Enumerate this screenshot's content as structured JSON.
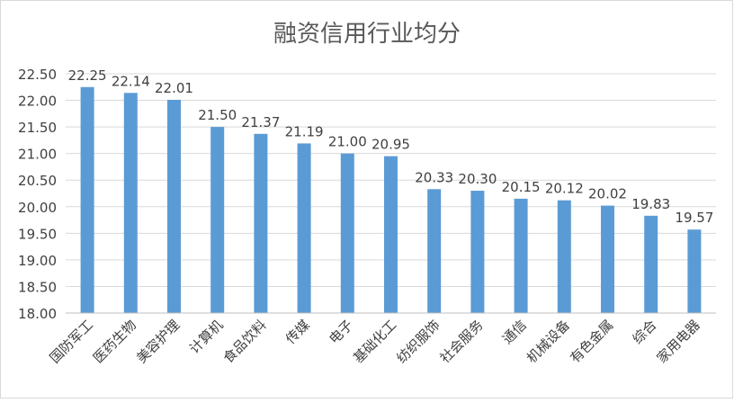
{
  "chart_data": {
    "type": "bar",
    "title": "融资信用行业均分",
    "categories": [
      "国防军工",
      "医药生物",
      "美容护理",
      "计算机",
      "食品饮料",
      "传媒",
      "电子",
      "基础化工",
      "纺织服饰",
      "社会服务",
      "通信",
      "机械设备",
      "有色金属",
      "综合",
      "家用电器"
    ],
    "values": [
      22.25,
      22.14,
      22.01,
      21.5,
      21.37,
      21.19,
      21.0,
      20.95,
      20.33,
      20.3,
      20.15,
      20.12,
      20.02,
      19.83,
      19.57
    ],
    "value_labels": [
      "22.25",
      "22.14",
      "22.01",
      "21.50",
      "21.37",
      "21.19",
      "21.00",
      "20.95",
      "20.33",
      "20.30",
      "20.15",
      "20.12",
      "20.02",
      "19.83",
      "19.57"
    ],
    "ylim": [
      18.0,
      22.5
    ],
    "yticks": [
      18.0,
      18.5,
      19.0,
      19.5,
      20.0,
      20.5,
      21.0,
      21.5,
      22.0,
      22.5
    ],
    "ytick_labels": [
      "18.00",
      "18.50",
      "19.00",
      "19.50",
      "20.00",
      "20.50",
      "21.00",
      "21.50",
      "22.00",
      "22.50"
    ],
    "xlabel": "",
    "ylabel": "",
    "grid": true,
    "legend": "none",
    "bar_color": "#5b9bd5",
    "grid_color": "#d9d9d9",
    "text_color": "#404040"
  }
}
